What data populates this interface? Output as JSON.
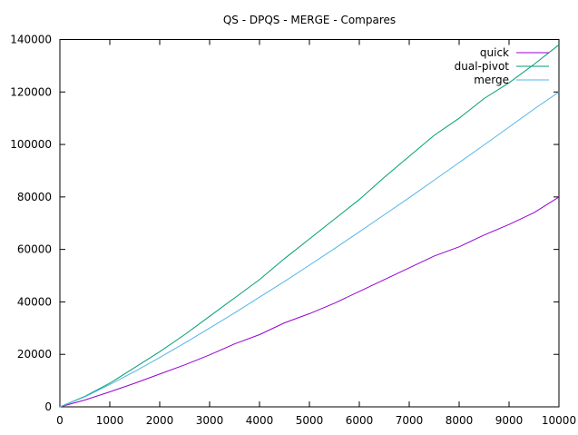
{
  "chart_data": {
    "type": "line",
    "title": "QS - DPQS - MERGE - Compares",
    "xlabel": "",
    "ylabel": "",
    "xlim": [
      0,
      10000
    ],
    "ylim": [
      0,
      140000
    ],
    "xticks": [
      "0",
      "1000",
      "2000",
      "3000",
      "4000",
      "5000",
      "6000",
      "7000",
      "8000",
      "9000",
      "10000"
    ],
    "yticks": [
      "0",
      "20000",
      "40000",
      "60000",
      "80000",
      "100000",
      "120000",
      "140000"
    ],
    "grid": false,
    "legend_position": "top-right",
    "x": [
      0,
      500,
      1000,
      1500,
      2000,
      2500,
      3000,
      3500,
      4000,
      4500,
      5000,
      5500,
      6000,
      6500,
      7000,
      7500,
      8000,
      8500,
      9000,
      9500,
      10000
    ],
    "series": [
      {
        "name": "quick",
        "color": "#9400d3",
        "values": [
          0,
          2600,
          5700,
          9000,
          12500,
          16000,
          19800,
          24000,
          27500,
          32000,
          35500,
          39500,
          44000,
          48500,
          53000,
          57500,
          61000,
          65500,
          69500,
          74000,
          80000
        ]
      },
      {
        "name": "dual-pivot",
        "color": "#009e73",
        "values": [
          0,
          4000,
          9000,
          15000,
          21000,
          27500,
          34500,
          41500,
          48500,
          56500,
          64000,
          71500,
          79000,
          87500,
          95500,
          103500,
          110000,
          117500,
          123500,
          130500,
          138000
        ]
      },
      {
        "name": "merge",
        "color": "#56b4e9",
        "values": [
          0,
          3800,
          8500,
          13500,
          18800,
          24300,
          30000,
          35800,
          41800,
          47800,
          54000,
          60300,
          66700,
          73200,
          79700,
          86400,
          93100,
          99800,
          106600,
          113500,
          120000
        ]
      }
    ]
  }
}
